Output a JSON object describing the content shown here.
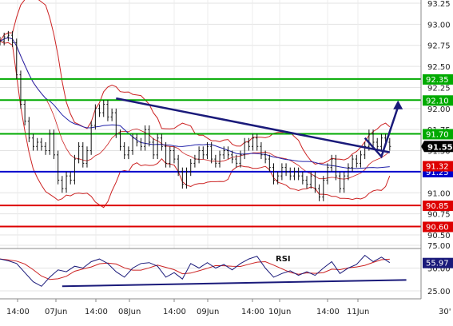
{
  "chart_data": {
    "type": "line",
    "price_panel": {
      "ylim": [
        90.45,
        93.3
      ],
      "yticks": [
        "93.25",
        "93.00",
        "92.75",
        "92.50",
        "92.25",
        "92.00",
        "91.75",
        "91.50",
        "91.25",
        "91.00",
        "90.75",
        "90.50"
      ],
      "current_price": "91.55",
      "hidden_tag": "91.32",
      "levels": [
        {
          "value": 92.35,
          "label": "92.35",
          "color": "#00aa00"
        },
        {
          "value": 92.1,
          "label": "92.10",
          "color": "#00aa00"
        },
        {
          "value": 91.7,
          "label": "91.70",
          "color": "#00aa00"
        },
        {
          "value": 91.25,
          "label": "91.25",
          "color": "#0000cc"
        },
        {
          "value": 90.85,
          "label": "90.85",
          "color": "#dd0000"
        },
        {
          "value": 90.6,
          "label": "90.60",
          "color": "#dd0000"
        }
      ],
      "trendline": {
        "x": [
          28,
          94
        ],
        "y": [
          92.12,
          91.48
        ],
        "color": "#1a1a7a"
      },
      "forecast": {
        "x": [
          88,
          92,
          96
        ],
        "y": [
          91.65,
          91.43,
          92.02
        ],
        "color": "#1a1a7a"
      },
      "price": [
        [
          0,
          92.8
        ],
        [
          1,
          92.85
        ],
        [
          2,
          92.87
        ],
        [
          3,
          92.78
        ],
        [
          4,
          92.4
        ],
        [
          5,
          92.05
        ],
        [
          6,
          91.85
        ],
        [
          7,
          91.65
        ],
        [
          8,
          91.55
        ],
        [
          9,
          91.6
        ],
        [
          10,
          91.55
        ],
        [
          11,
          91.5
        ],
        [
          12,
          91.7
        ],
        [
          13,
          91.45
        ],
        [
          14,
          91.15
        ],
        [
          15,
          91.05
        ],
        [
          16,
          91.2
        ],
        [
          17,
          91.15
        ],
        [
          18,
          91.4
        ],
        [
          19,
          91.55
        ],
        [
          20,
          91.35
        ],
        [
          21,
          91.5
        ],
        [
          22,
          91.8
        ],
        [
          23,
          92.0
        ],
        [
          24,
          91.95
        ],
        [
          25,
          92.05
        ],
        [
          26,
          91.9
        ],
        [
          27,
          91.95
        ],
        [
          28,
          91.7
        ],
        [
          29,
          91.55
        ],
        [
          30,
          91.45
        ],
        [
          31,
          91.5
        ],
        [
          32,
          91.65
        ],
        [
          33,
          91.6
        ],
        [
          34,
          91.55
        ],
        [
          35,
          91.75
        ],
        [
          36,
          91.6
        ],
        [
          37,
          91.45
        ],
        [
          38,
          91.65
        ],
        [
          39,
          91.55
        ],
        [
          40,
          91.35
        ],
        [
          41,
          91.5
        ],
        [
          42,
          91.4
        ],
        [
          43,
          91.25
        ],
        [
          44,
          91.1
        ],
        [
          45,
          91.25
        ],
        [
          46,
          91.35
        ],
        [
          47,
          91.4
        ],
        [
          48,
          91.5
        ],
        [
          49,
          91.45
        ],
        [
          50,
          91.55
        ],
        [
          51,
          91.4
        ],
        [
          52,
          91.35
        ],
        [
          53,
          91.45
        ],
        [
          54,
          91.5
        ],
        [
          55,
          91.45
        ],
        [
          56,
          91.4
        ],
        [
          57,
          91.35
        ],
        [
          58,
          91.45
        ],
        [
          59,
          91.6
        ],
        [
          60,
          91.55
        ],
        [
          61,
          91.65
        ],
        [
          62,
          91.55
        ],
        [
          63,
          91.45
        ],
        [
          64,
          91.4
        ],
        [
          65,
          91.3
        ],
        [
          66,
          91.15
        ],
        [
          67,
          91.2
        ],
        [
          68,
          91.3
        ],
        [
          69,
          91.25
        ],
        [
          70,
          91.2
        ],
        [
          71,
          91.25
        ],
        [
          72,
          91.2
        ],
        [
          73,
          91.15
        ],
        [
          74,
          91.1
        ],
        [
          75,
          91.2
        ],
        [
          76,
          91.05
        ],
        [
          77,
          90.95
        ],
        [
          78,
          91.15
        ],
        [
          79,
          91.3
        ],
        [
          80,
          91.4
        ],
        [
          81,
          91.2
        ],
        [
          82,
          91.05
        ],
        [
          83,
          91.2
        ],
        [
          84,
          91.3
        ],
        [
          85,
          91.4
        ],
        [
          86,
          91.35
        ],
        [
          87,
          91.45
        ],
        [
          88,
          91.55
        ],
        [
          89,
          91.7
        ],
        [
          90,
          91.6
        ],
        [
          91,
          91.55
        ],
        [
          92,
          91.65
        ],
        [
          93,
          91.6
        ],
        [
          94,
          91.55
        ]
      ]
    },
    "rsi_panel": {
      "title": "RSI",
      "ylim": [
        20,
        80
      ],
      "yticks": [
        "75.00",
        "50.00",
        "25.00"
      ],
      "current_value": "55.97",
      "trendline": {
        "x": [
          15,
          98
        ],
        "y": [
          30,
          37
        ],
        "color": "#1a1a7a"
      },
      "rsi": [
        [
          0,
          60
        ],
        [
          2,
          58
        ],
        [
          4,
          55
        ],
        [
          6,
          45
        ],
        [
          8,
          35
        ],
        [
          10,
          30
        ],
        [
          12,
          40
        ],
        [
          14,
          48
        ],
        [
          16,
          46
        ],
        [
          18,
          52
        ],
        [
          20,
          50
        ],
        [
          22,
          57
        ],
        [
          24,
          60
        ],
        [
          26,
          55
        ],
        [
          28,
          46
        ],
        [
          30,
          40
        ],
        [
          32,
          50
        ],
        [
          34,
          55
        ],
        [
          36,
          56
        ],
        [
          38,
          52
        ],
        [
          40,
          40
        ],
        [
          42,
          45
        ],
        [
          44,
          38
        ],
        [
          46,
          55
        ],
        [
          48,
          50
        ],
        [
          50,
          56
        ],
        [
          52,
          50
        ],
        [
          54,
          54
        ],
        [
          56,
          48
        ],
        [
          58,
          55
        ],
        [
          60,
          60
        ],
        [
          62,
          63
        ],
        [
          64,
          50
        ],
        [
          66,
          40
        ],
        [
          68,
          44
        ],
        [
          70,
          47
        ],
        [
          72,
          42
        ],
        [
          74,
          46
        ],
        [
          76,
          42
        ],
        [
          78,
          50
        ],
        [
          80,
          57
        ],
        [
          82,
          44
        ],
        [
          84,
          50
        ],
        [
          86,
          54
        ],
        [
          88,
          64
        ],
        [
          90,
          57
        ],
        [
          92,
          62
        ],
        [
          94,
          56
        ]
      ]
    },
    "x_labels": [
      "14:00",
      "07Jun",
      "14:00",
      "08Jun",
      "14:00",
      "09Jun",
      "14:00",
      "10Jun",
      "14:00",
      "11Jun"
    ],
    "timeframe": "30'"
  }
}
